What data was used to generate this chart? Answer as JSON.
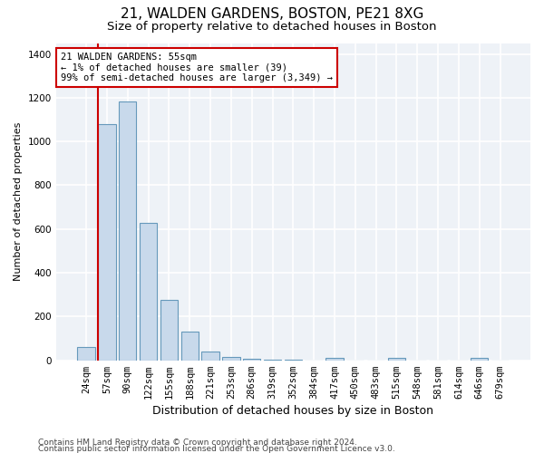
{
  "title1": "21, WALDEN GARDENS, BOSTON, PE21 8XG",
  "title2": "Size of property relative to detached houses in Boston",
  "xlabel": "Distribution of detached houses by size in Boston",
  "ylabel": "Number of detached properties",
  "categories": [
    "24sqm",
    "57sqm",
    "90sqm",
    "122sqm",
    "155sqm",
    "188sqm",
    "221sqm",
    "253sqm",
    "286sqm",
    "319sqm",
    "352sqm",
    "384sqm",
    "417sqm",
    "450sqm",
    "483sqm",
    "515sqm",
    "548sqm",
    "581sqm",
    "614sqm",
    "646sqm",
    "679sqm"
  ],
  "values": [
    60,
    1080,
    1185,
    630,
    275,
    130,
    40,
    15,
    5,
    2,
    1,
    0,
    12,
    0,
    0,
    12,
    0,
    0,
    0,
    10,
    0
  ],
  "bar_color": "#c8d9eb",
  "bar_edge_color": "#6699bb",
  "annotation_text": "21 WALDEN GARDENS: 55sqm\n← 1% of detached houses are smaller (39)\n99% of semi-detached houses are larger (3,349) →",
  "annotation_box_color": "white",
  "annotation_box_edge_color": "#cc0000",
  "vline_color": "#cc0000",
  "vline_x": 0.57,
  "ylim": [
    0,
    1450
  ],
  "yticks": [
    0,
    200,
    400,
    600,
    800,
    1000,
    1200,
    1400
  ],
  "background_color": "#eef2f7",
  "grid_color": "white",
  "footer1": "Contains HM Land Registry data © Crown copyright and database right 2024.",
  "footer2": "Contains public sector information licensed under the Open Government Licence v3.0.",
  "title1_fontsize": 11,
  "title2_fontsize": 9.5,
  "xlabel_fontsize": 9,
  "ylabel_fontsize": 8,
  "tick_fontsize": 7.5,
  "annot_fontsize": 7.5,
  "footer_fontsize": 6.5
}
